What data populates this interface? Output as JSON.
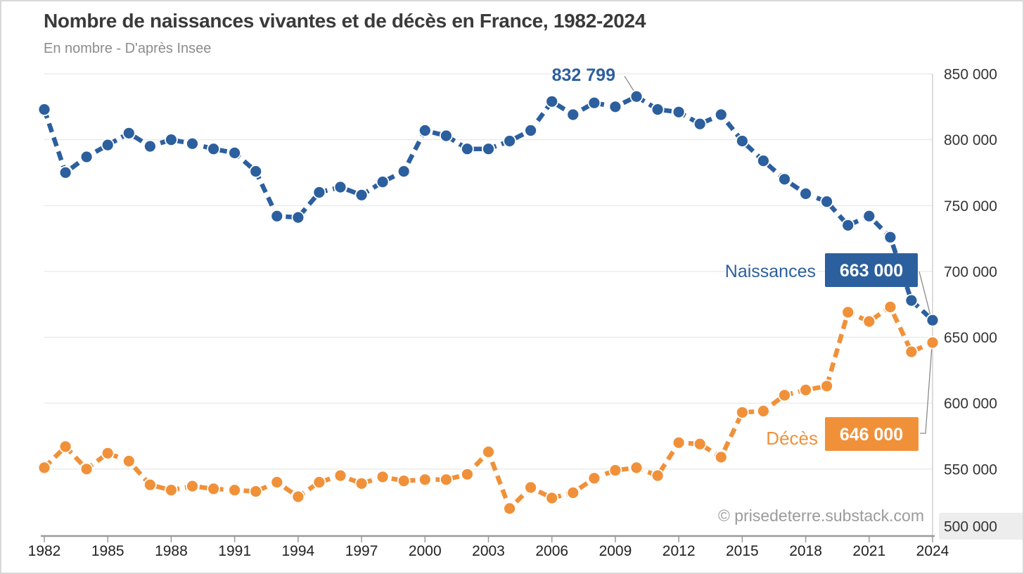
{
  "header": {
    "title": "Nombre de naissances vivantes et de décès en France, 1982-2024",
    "subtitle": "En nombre - D'après Insee"
  },
  "chart_data": {
    "type": "line",
    "title": "Nombre de naissances vivantes et de décès en France, 1982-2024",
    "subtitle": "En nombre - D'après Insee",
    "watermark": "© prisedeterre.substack.com",
    "grid": "horizontal",
    "legend_position": "direct-labels-right",
    "line_style": "dashed-with-round-markers",
    "ylim": [
      500000,
      850000
    ],
    "years": [
      1982,
      1983,
      1984,
      1985,
      1986,
      1987,
      1988,
      1989,
      1990,
      1991,
      1992,
      1993,
      1994,
      1995,
      1996,
      1997,
      1998,
      1999,
      2000,
      2001,
      2002,
      2003,
      2004,
      2005,
      2006,
      2007,
      2008,
      2009,
      2010,
      2011,
      2012,
      2013,
      2014,
      2015,
      2016,
      2017,
      2018,
      2019,
      2020,
      2021,
      2022,
      2023,
      2024
    ],
    "x_ticks": [
      1982,
      1985,
      1988,
      1991,
      1994,
      1997,
      2000,
      2003,
      2006,
      2009,
      2012,
      2015,
      2018,
      2021,
      2024
    ],
    "y_ticks": [
      {
        "value": 850000,
        "label": "850 000"
      },
      {
        "value": 800000,
        "label": "800 000"
      },
      {
        "value": 750000,
        "label": "750 000"
      },
      {
        "value": 700000,
        "label": "700 000"
      },
      {
        "value": 650000,
        "label": "650 000"
      },
      {
        "value": 600000,
        "label": "600 000"
      },
      {
        "value": 550000,
        "label": "550 000"
      },
      {
        "value": 500000,
        "label": "500 000",
        "highlight": true
      }
    ],
    "series": [
      {
        "name": "Naissances",
        "color": "#2c5f9e",
        "values": [
          823000,
          775000,
          787000,
          796000,
          805000,
          795000,
          800000,
          797000,
          793000,
          790000,
          776000,
          742000,
          741000,
          760000,
          764000,
          758000,
          768000,
          776000,
          807000,
          803000,
          793000,
          793000,
          799000,
          807000,
          829000,
          819000,
          828000,
          825000,
          832799,
          823000,
          821000,
          812000,
          819000,
          799000,
          784000,
          770000,
          759000,
          753000,
          735000,
          742000,
          726000,
          678000,
          663000
        ]
      },
      {
        "name": "Décès",
        "color": "#f0913a",
        "values": [
          551000,
          567000,
          550000,
          562000,
          556000,
          538000,
          534000,
          537000,
          535000,
          534000,
          533000,
          540000,
          529000,
          540000,
          545000,
          539000,
          544000,
          541000,
          542000,
          542000,
          546000,
          563000,
          520000,
          536000,
          528000,
          532000,
          543000,
          549000,
          551000,
          545000,
          570000,
          569000,
          559000,
          593000,
          594000,
          606000,
          610000,
          613000,
          669000,
          662000,
          673000,
          639000,
          646000
        ]
      }
    ],
    "annotations": {
      "peak": {
        "series": "Naissances",
        "year": 2010,
        "label": "832 799"
      },
      "series_end_labels": [
        {
          "series": "Naissances",
          "label": "Naissances",
          "value_label": "663 000"
        },
        {
          "series": "Décès",
          "label": "Décès",
          "value_label": "646 000"
        }
      ]
    },
    "colors": {
      "naissances": "#2c5f9e",
      "deces": "#f0913a",
      "grid": "#e8e8e8",
      "axis": "#9a9a9a",
      "plot_border": "#cccccc",
      "leader": "#8a8a8a",
      "tick_text": "#333333",
      "x_tick_text": "#222222",
      "watermark": "#9b9b9b",
      "highlight_bg": "#ededed",
      "value_box_text": "#ffffff"
    }
  }
}
